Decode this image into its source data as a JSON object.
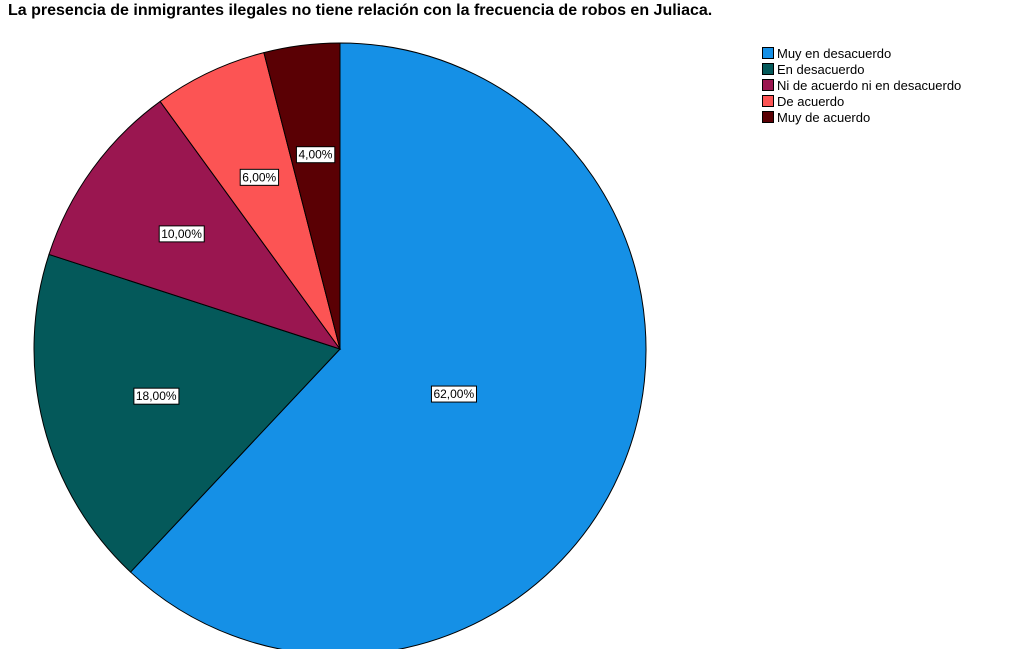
{
  "chart_data": {
    "type": "pie",
    "title": "La presencia de inmigrantes ilegales no tiene relación con la frecuencia de robos en Juliaca.",
    "categories": [
      "Muy en desacuerdo",
      "En desacuerdo",
      "Ni de acuerdo ni en desacuerdo",
      "De acuerdo",
      "Muy de acuerdo"
    ],
    "values": [
      62,
      18,
      10,
      6,
      4
    ],
    "labels": [
      "62,00%",
      "18,00%",
      "10,00%",
      "6,00%",
      "4,00%"
    ],
    "colors": [
      "#1590e6",
      "#04595a",
      "#9a1650",
      "#fc5454",
      "#5a0004"
    ],
    "start_angle_deg": 0,
    "direction": "clockwise",
    "legend_position": "top-right"
  }
}
